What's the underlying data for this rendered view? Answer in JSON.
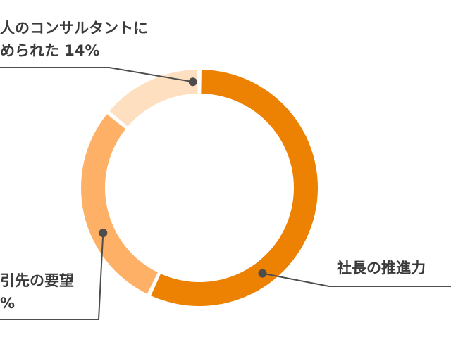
{
  "chart_data": {
    "type": "pie",
    "donut": true,
    "slices": [
      {
        "label_lines": [
          "社長の推進力"
        ],
        "value": 57,
        "color": "#ED8102"
      },
      {
        "label_lines": [
          "引先の要望",
          "%"
        ],
        "value": 29,
        "color": "#FEB166"
      },
      {
        "label_lines": [
          "人のコンサルタントに",
          "められた 14%"
        ],
        "value": 14,
        "color": "#FEDFBF"
      }
    ],
    "leader_line_color": "#4d4d4d",
    "label_color": "#3a3a3a",
    "legend": "none"
  }
}
